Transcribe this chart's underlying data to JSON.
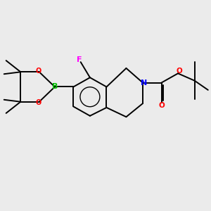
{
  "background_color": "#ebebeb",
  "bond_color": "#000000",
  "atom_colors": {
    "N": "#0000ff",
    "O": "#ff0000",
    "B": "#00bb00",
    "F": "#ff00ff"
  },
  "figsize": [
    3.0,
    3.0
  ],
  "dpi": 100
}
